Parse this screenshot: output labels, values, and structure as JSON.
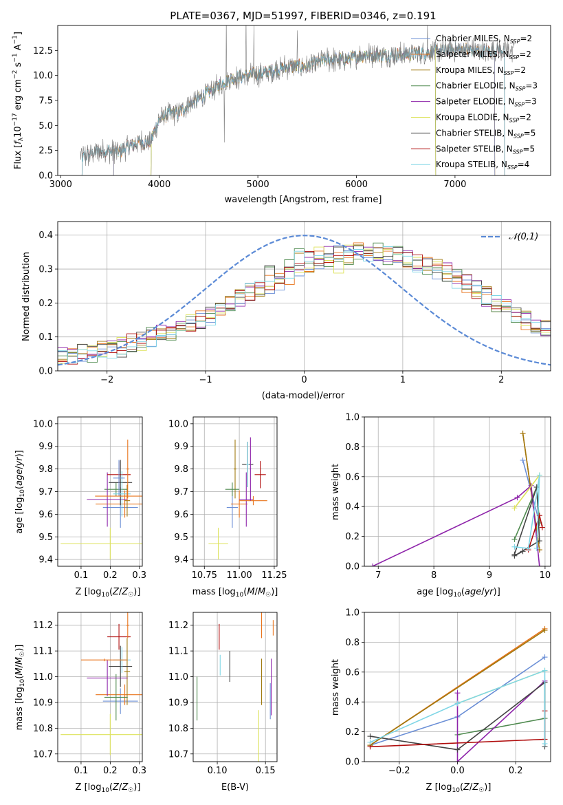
{
  "figure": {
    "title": "PLATE=0367, MJD=51997, FIBERID=0346, z=0.191"
  },
  "series_styles": [
    {
      "name": "Chabrier MILES, N_SSP=2",
      "color": "#6b8fd6"
    },
    {
      "name": "Salpeter MILES, N_SSP=2",
      "color": "#e8741c"
    },
    {
      "name": "Kroupa MILES, N_SSP=2",
      "color": "#a07a10"
    },
    {
      "name": "Chabrier ELODIE, N_SSP=3",
      "color": "#4f8a4f"
    },
    {
      "name": "Salpeter ELODIE, N_SSP=3",
      "color": "#8e24aa"
    },
    {
      "name": "Kroupa ELODIE, N_SSP=2",
      "color": "#dde25a"
    },
    {
      "name": "Chabrier STELIB, N_SSP=5",
      "color": "#444444"
    },
    {
      "name": "Salpeter STELIB, N_SSP=5",
      "color": "#b00d0d"
    },
    {
      "name": "Kroupa STELIB, N_SSP=4",
      "color": "#7fd6e6"
    }
  ],
  "chart_data": [
    {
      "id": "spectrum",
      "type": "line",
      "xlabel": "wavelength [Angstrom, rest frame]",
      "ylabel": "Flux [f_λ 10^-17 erg cm^-2 s^-1 A^-1]",
      "xlim": [
        2970,
        7970
      ],
      "ylim": [
        0,
        15
      ],
      "xticks": [
        3000,
        4000,
        5000,
        6000,
        7000
      ],
      "yticks": [
        0.0,
        2.5,
        5.0,
        7.5,
        10.0,
        12.5
      ],
      "grid": false,
      "legend_position": "top-right",
      "legend": [
        {
          "label": "Chabrier MILES, N",
          "sub": "SSP",
          "tail": "=2"
        },
        {
          "label": "Salpeter MILES, N",
          "sub": "SSP",
          "tail": "=2"
        },
        {
          "label": "Kroupa MILES, N",
          "sub": "SSP",
          "tail": "=2"
        },
        {
          "label": "Chabrier ELODIE, N",
          "sub": "SSP",
          "tail": "=3"
        },
        {
          "label": "Salpeter ELODIE, N",
          "sub": "SSP",
          "tail": "=3"
        },
        {
          "label": "Kroupa ELODIE, N",
          "sub": "SSP",
          "tail": "=2"
        },
        {
          "label": "Chabrier STELIB, N",
          "sub": "SSP",
          "tail": "=5"
        },
        {
          "label": "Salpeter STELIB, N",
          "sub": "SSP",
          "tail": "=5"
        },
        {
          "label": "Kroupa STELIB, N",
          "sub": "SSP",
          "tail": "=4"
        }
      ],
      "data_trend": {
        "wavelength": [
          3200,
          3400,
          3600,
          3800,
          3900,
          4000,
          4100,
          4200,
          4300,
          4500,
          4700,
          4900,
          5100,
          5300,
          5500,
          5700,
          5900,
          6100,
          6300,
          6500,
          6700,
          6900,
          7100,
          7300,
          7500
        ],
        "flux": [
          1.8,
          2.5,
          2.4,
          3.4,
          3.2,
          5.6,
          6.2,
          6.3,
          7.0,
          8.3,
          9.6,
          10.0,
          10.3,
          10.9,
          10.9,
          11.6,
          11.6,
          12.1,
          12.0,
          12.1,
          12.3,
          12.5,
          12.6,
          12.4,
          12.6
        ]
      },
      "model_starts": {
        "Chabrier MILES, N_SSP=2": 3540,
        "Salpeter MILES, N_SSP=2": 3540,
        "Kroupa MILES, N_SSP=2": 3540,
        "Chabrier ELODIE, N_SSP=3": 3920,
        "Salpeter ELODIE, N_SSP=3": 3920,
        "Kroupa ELODIE, N_SSP=2": 3920,
        "Chabrier STELIB, N_SSP=5": 3220,
        "Salpeter STELIB, N_SSP=5": 3220,
        "Kroupa STELIB, N_SSP=4": 3220
      },
      "model_ends": {
        "Chabrier MILES, N_SSP=2": 7400,
        "Salpeter MILES, N_SSP=2": 7400,
        "Kroupa MILES, N_SSP=2": 7400,
        "Chabrier ELODIE, N_SSP=3": 6800,
        "Salpeter ELODIE, N_SSP=3": 6800,
        "Kroupa ELODIE, N_SSP=2": 6800,
        "Chabrier STELIB, N_SSP=5": 7500,
        "Salpeter STELIB, N_SSP=5": 7500,
        "Kroupa STELIB, N_SSP=4": 7500
      }
    },
    {
      "id": "residuals",
      "type": "histogram",
      "xlabel": "(data-model)/error",
      "ylabel": "Normed distribution",
      "xlim": [
        -2.5,
        2.5
      ],
      "ylim": [
        0,
        0.44
      ],
      "xticks": [
        -2,
        -1,
        0,
        1,
        2
      ],
      "yticks": [
        0.0,
        0.1,
        0.2,
        0.3,
        0.4
      ],
      "grid": true,
      "legend_position": "top-right",
      "reference_curve": {
        "label": "N(0,1)",
        "color": "#5b8ad6",
        "mu": 0,
        "sigma": 1
      },
      "bin_width": 0.1,
      "bin_start": -2.5,
      "envelope": [
        0.04,
        0.04,
        0.05,
        0.05,
        0.06,
        0.06,
        0.07,
        0.08,
        0.09,
        0.1,
        0.11,
        0.12,
        0.13,
        0.14,
        0.15,
        0.16,
        0.18,
        0.19,
        0.21,
        0.23,
        0.25,
        0.26,
        0.28,
        0.3,
        0.31,
        0.32,
        0.33,
        0.34,
        0.34,
        0.35,
        0.35,
        0.35,
        0.35,
        0.34,
        0.34,
        0.33,
        0.32,
        0.31,
        0.3,
        0.29,
        0.27,
        0.26,
        0.24,
        0.22,
        0.2,
        0.19,
        0.17,
        0.15,
        0.14,
        0.12
      ]
    },
    {
      "id": "age-vs-Z",
      "type": "errorbar",
      "xlabel": "Z [log10(Z/Z☉)]",
      "ylabel": "age  [log10(age/yr)]",
      "xlim": [
        0.02,
        0.31
      ],
      "ylim": [
        9.37,
        10.03
      ],
      "xticks": [
        0.1,
        0.2,
        0.3
      ],
      "yticks": [
        9.4,
        9.5,
        9.6,
        9.7,
        9.8,
        9.9,
        10.0
      ],
      "grid": true,
      "points": [
        {
          "series": 0,
          "x": 0.235,
          "y": 9.63,
          "xerr": 0.06,
          "yerr": 0.09
        },
        {
          "series": 1,
          "x": 0.25,
          "y": 9.645,
          "xerr": 0.1,
          "yerr": 0.06
        },
        {
          "series": 2,
          "x": 0.258,
          "y": 9.66,
          "xerr": 0.01,
          "yerr": 0.07
        },
        {
          "series": 3,
          "x": 0.22,
          "y": 9.71,
          "xerr": 0.04,
          "yerr": 0.03
        },
        {
          "series": 4,
          "x": 0.19,
          "y": 9.665,
          "xerr": 0.07,
          "yerr": 0.12
        },
        {
          "series": 5,
          "x": 0.2,
          "y": 9.47,
          "xerr": 0.17,
          "yerr": 0.07
        },
        {
          "series": 6,
          "x": 0.235,
          "y": 9.74,
          "xerr": 0.04,
          "yerr": 0.1
        },
        {
          "series": 7,
          "x": 0.23,
          "y": 9.775,
          "xerr": 0.04,
          "yerr": 0.06
        },
        {
          "series": 8,
          "x": 0.24,
          "y": 9.69,
          "xerr": 0.03,
          "yerr": 0.1
        },
        {
          "series": 0,
          "x": 0.23,
          "y": 9.76,
          "xerr": 0.02,
          "yerr": 0.08
        },
        {
          "series": 1,
          "x": 0.26,
          "y": 9.8,
          "xerr": 0.005,
          "yerr": 0.13
        },
        {
          "series": 1,
          "x": 0.258,
          "y": 9.68,
          "xerr": 0.11,
          "yerr": 0.02
        }
      ]
    },
    {
      "id": "age-vs-mass",
      "type": "errorbar",
      "xlabel": "mass [log10(M/M☉)]",
      "ylabel": "",
      "xlim": [
        10.67,
        11.27
      ],
      "ylim": [
        9.37,
        10.03
      ],
      "xticks": [
        10.75,
        11.0,
        11.25
      ],
      "yticks": [
        9.4,
        9.5,
        9.6,
        9.7,
        9.8,
        9.9,
        10.0
      ],
      "grid": true,
      "points": [
        {
          "series": 0,
          "x": 10.95,
          "y": 9.63,
          "xerr": 0.04,
          "yerr": 0.09
        },
        {
          "series": 1,
          "x": 11.0,
          "y": 9.645,
          "xerr": 0.06,
          "yerr": 0.06
        },
        {
          "series": 2,
          "x": 10.97,
          "y": 9.8,
          "xerr": 0.01,
          "yerr": 0.13
        },
        {
          "series": 3,
          "x": 10.95,
          "y": 9.71,
          "xerr": 0.05,
          "yerr": 0.03
        },
        {
          "series": 4,
          "x": 11.05,
          "y": 9.665,
          "xerr": 0.05,
          "yerr": 0.12
        },
        {
          "series": 5,
          "x": 10.85,
          "y": 9.47,
          "xerr": 0.07,
          "yerr": 0.07
        },
        {
          "series": 6,
          "x": 11.06,
          "y": 9.82,
          "xerr": 0.04,
          "yerr": 0.1
        },
        {
          "series": 7,
          "x": 11.15,
          "y": 9.775,
          "xerr": 0.04,
          "yerr": 0.06
        },
        {
          "series": 8,
          "x": 11.06,
          "y": 9.82,
          "xerr": 0.01,
          "yerr": 0.1
        },
        {
          "series": 1,
          "x": 11.1,
          "y": 9.66,
          "xerr": 0.1,
          "yerr": 0.02
        },
        {
          "series": 4,
          "x": 11.08,
          "y": 9.8,
          "xerr": 0.005,
          "yerr": 0.14
        }
      ]
    },
    {
      "id": "weight-vs-age",
      "type": "line",
      "xlabel": "age  [log10(age/yr)]",
      "ylabel": "mass weight",
      "xlim": [
        6.75,
        10.1
      ],
      "ylim": [
        0,
        1
      ],
      "xticks": [
        7,
        8,
        9,
        10
      ],
      "yticks": [
        0.0,
        0.2,
        0.4,
        0.6,
        0.8,
        1.0
      ],
      "grid": true,
      "series_points": [
        {
          "series": 0,
          "x": [
            9.6,
            9.9
          ],
          "y": [
            0.71,
            0.29
          ]
        },
        {
          "series": 1,
          "x": [
            9.6,
            9.9
          ],
          "y": [
            0.89,
            0.11
          ]
        },
        {
          "series": 2,
          "x": [
            9.6,
            9.9
          ],
          "y": [
            0.89,
            0.11
          ]
        },
        {
          "series": 3,
          "x": [
            9.45,
            9.85,
            9.9
          ],
          "y": [
            0.18,
            0.53,
            0.29
          ]
        },
        {
          "series": 4,
          "x": [
            6.9,
            9.5,
            9.75,
            9.9
          ],
          "y": [
            0.0,
            0.46,
            0.54,
            0.0
          ]
        },
        {
          "series": 5,
          "x": [
            9.45,
            9.9
          ],
          "y": [
            0.39,
            0.61
          ]
        },
        {
          "series": 6,
          "x": [
            9.45,
            9.85,
            9.9,
            9.45,
            9.6
          ],
          "y": [
            0.08,
            0.53,
            0.17,
            0.07,
            0.1
          ]
        },
        {
          "series": 7,
          "x": [
            9.7,
            9.9,
            9.95
          ],
          "y": [
            0.11,
            0.34,
            0.26
          ]
        },
        {
          "series": 8,
          "x": [
            9.45,
            9.7,
            9.9,
            9.85
          ],
          "y": [
            0.13,
            0.12,
            0.61,
            0.12
          ]
        }
      ]
    },
    {
      "id": "mass-vs-Z",
      "type": "errorbar",
      "xlabel": "Z [log10(Z/Z☉)]",
      "ylabel": "mass [log10(M/M☉)]",
      "xlim": [
        0.02,
        0.31
      ],
      "ylim": [
        10.67,
        11.25
      ],
      "xticks": [
        0.1,
        0.2,
        0.3
      ],
      "yticks": [
        10.7,
        10.8,
        10.9,
        11.0,
        11.1,
        11.2
      ],
      "grid": true,
      "points": [
        {
          "series": 0,
          "x": 0.235,
          "y": 10.905,
          "xerr": 0.06,
          "yerr": 0.05
        },
        {
          "series": 1,
          "x": 0.25,
          "y": 10.93,
          "xerr": 0.1,
          "yerr": 0.04
        },
        {
          "series": 2,
          "x": 0.258,
          "y": 11.02,
          "xerr": 0.01,
          "yerr": 0.13
        },
        {
          "series": 3,
          "x": 0.22,
          "y": 10.92,
          "xerr": 0.04,
          "yerr": 0.09
        },
        {
          "series": 4,
          "x": 0.19,
          "y": 10.995,
          "xerr": 0.07,
          "yerr": 0.07
        },
        {
          "series": 5,
          "x": 0.2,
          "y": 10.775,
          "xerr": 0.17,
          "yerr": 0.08
        },
        {
          "series": 6,
          "x": 0.235,
          "y": 11.04,
          "xerr": 0.04,
          "yerr": 0.08
        },
        {
          "series": 7,
          "x": 0.23,
          "y": 11.155,
          "xerr": 0.04,
          "yerr": 0.05
        },
        {
          "series": 8,
          "x": 0.24,
          "y": 11.065,
          "xerr": 0.03,
          "yerr": 0.05
        },
        {
          "series": 1,
          "x": 0.26,
          "y": 11.2,
          "xerr": 0.005,
          "yerr": 0.05
        },
        {
          "series": 1,
          "x": 0.18,
          "y": 11.065,
          "xerr": 0.08,
          "yerr": 0.005
        }
      ]
    },
    {
      "id": "mass-vs-ebv",
      "type": "errorbar",
      "xlabel": "E(B-V)",
      "ylabel": "",
      "xlim": [
        0.075,
        0.162
      ],
      "ylim": [
        10.67,
        11.25
      ],
      "xticks": [
        0.1,
        0.15
      ],
      "yticks": [
        10.7,
        10.8,
        10.9,
        11.0,
        11.1,
        11.2
      ],
      "grid": true,
      "points": [
        {
          "series": 0,
          "x": 0.155,
          "y": 10.905,
          "xerr": 0,
          "yerr": 0.07
        },
        {
          "series": 1,
          "x": 0.146,
          "y": 11.2,
          "xerr": 0,
          "yerr": 0.05
        },
        {
          "series": 2,
          "x": 0.146,
          "y": 10.98,
          "xerr": 0,
          "yerr": 0.09
        },
        {
          "series": 3,
          "x": 0.079,
          "y": 10.915,
          "xerr": 0,
          "yerr": 0.085
        },
        {
          "series": 4,
          "x": 0.156,
          "y": 10.96,
          "xerr": 0,
          "yerr": 0.11
        },
        {
          "series": 5,
          "x": 0.143,
          "y": 10.77,
          "xerr": 0,
          "yerr": 0.1
        },
        {
          "series": 6,
          "x": 0.113,
          "y": 11.04,
          "xerr": 0,
          "yerr": 0.06
        },
        {
          "series": 7,
          "x": 0.102,
          "y": 11.155,
          "xerr": 0,
          "yerr": 0.05
        },
        {
          "series": 8,
          "x": 0.103,
          "y": 11.045,
          "xerr": 0,
          "yerr": 0.04
        },
        {
          "series": 1,
          "x": 0.158,
          "y": 11.19,
          "xerr": 0,
          "yerr": 0.03
        }
      ]
    },
    {
      "id": "weight-vs-Z",
      "type": "line",
      "xlabel": "Z [log10(Z/Z☉)]",
      "ylabel": "mass weight",
      "xlim": [
        -0.32,
        0.32
      ],
      "ylim": [
        0,
        1
      ],
      "xticks": [
        -0.2,
        0.0,
        0.2
      ],
      "yticks": [
        0.0,
        0.2,
        0.4,
        0.6,
        0.8,
        1.0
      ],
      "grid": true,
      "series_points": [
        {
          "series": 0,
          "x": [
            -0.3,
            0.0,
            0.3
          ],
          "y": [
            0.11,
            0.3,
            0.7
          ]
        },
        {
          "series": 1,
          "x": [
            -0.3,
            0.3
          ],
          "y": [
            0.11,
            0.89
          ]
        },
        {
          "series": 2,
          "x": [
            -0.3,
            0.3
          ],
          "y": [
            0.11,
            0.88
          ]
        },
        {
          "series": 3,
          "x": [
            0.0,
            0.3,
            0.3
          ],
          "y": [
            0.18,
            0.29,
            0.53
          ]
        },
        {
          "series": 4,
          "x": [
            0.0,
            0.0,
            0.3
          ],
          "y": [
            0.46,
            0.0,
            0.54
          ]
        },
        {
          "series": 5,
          "x": [
            0.0,
            0.3
          ],
          "y": [
            0.39,
            0.61
          ]
        },
        {
          "series": 6,
          "x": [
            -0.3,
            0.0,
            0.3,
            0.3
          ],
          "y": [
            0.17,
            0.08,
            0.53,
            0.1
          ]
        },
        {
          "series": 7,
          "x": [
            -0.3,
            0.3,
            0.3
          ],
          "y": [
            0.1,
            0.15,
            0.34
          ]
        },
        {
          "series": 8,
          "x": [
            -0.3,
            0.0,
            0.3,
            0.3
          ],
          "y": [
            0.13,
            0.39,
            0.61,
            0.12
          ]
        }
      ]
    }
  ]
}
